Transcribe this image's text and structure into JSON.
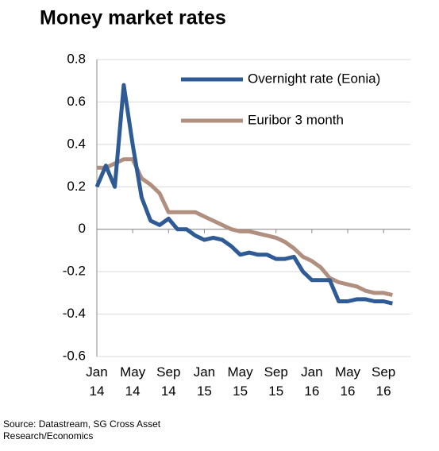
{
  "chart_data": {
    "type": "line",
    "title": "Money market rates",
    "source": "Source: Datastream, SG Cross Asset Research/Economics",
    "x": [
      "2014-01",
      "2014-02",
      "2014-03",
      "2014-04",
      "2014-05",
      "2014-06",
      "2014-07",
      "2014-08",
      "2014-09",
      "2014-10",
      "2014-11",
      "2014-12",
      "2015-01",
      "2015-02",
      "2015-03",
      "2015-04",
      "2015-05",
      "2015-06",
      "2015-07",
      "2015-08",
      "2015-09",
      "2015-10",
      "2015-11",
      "2015-12",
      "2016-01",
      "2016-02",
      "2016-03",
      "2016-04",
      "2016-05",
      "2016-06",
      "2016-07",
      "2016-08",
      "2016-09",
      "2016-10"
    ],
    "series": [
      {
        "name": "Overnight rate (Eonia)",
        "color": "#2e5a96",
        "values": [
          0.2,
          0.3,
          0.2,
          0.68,
          0.4,
          0.15,
          0.04,
          0.02,
          0.05,
          0.0,
          0.0,
          -0.03,
          -0.05,
          -0.04,
          -0.05,
          -0.08,
          -0.12,
          -0.11,
          -0.12,
          -0.12,
          -0.14,
          -0.14,
          -0.13,
          -0.2,
          -0.24,
          -0.24,
          -0.24,
          -0.34,
          -0.34,
          -0.33,
          -0.33,
          -0.34,
          -0.34,
          -0.35
        ]
      },
      {
        "name": "Euribor 3 month",
        "color": "#b08f7f",
        "values": [
          0.29,
          0.29,
          0.31,
          0.33,
          0.33,
          0.24,
          0.21,
          0.17,
          0.08,
          0.08,
          0.08,
          0.08,
          0.06,
          0.04,
          0.02,
          0.0,
          -0.01,
          -0.01,
          -0.02,
          -0.03,
          -0.04,
          -0.06,
          -0.09,
          -0.13,
          -0.15,
          -0.18,
          -0.23,
          -0.25,
          -0.26,
          -0.27,
          -0.29,
          -0.3,
          -0.3,
          -0.31
        ]
      }
    ],
    "xlim": [
      "2014-01",
      "2016-12"
    ],
    "xticks": [
      {
        "value": "2014-01",
        "label": "Jan 14"
      },
      {
        "value": "2014-05",
        "label": "May 14"
      },
      {
        "value": "2014-09",
        "label": "Sep 14"
      },
      {
        "value": "2015-01",
        "label": "Jan 15"
      },
      {
        "value": "2015-05",
        "label": "May 15"
      },
      {
        "value": "2015-09",
        "label": "Sep 15"
      },
      {
        "value": "2016-01",
        "label": "Jan 16"
      },
      {
        "value": "2016-05",
        "label": "May 16"
      },
      {
        "value": "2016-09",
        "label": "Sep 16"
      }
    ],
    "ylim": [
      -0.6,
      0.8
    ],
    "yticks": [
      {
        "value": -0.6,
        "label": "-0.6"
      },
      {
        "value": -0.4,
        "label": "-0.4"
      },
      {
        "value": -0.2,
        "label": "-0.2"
      },
      0,
      {
        "value": 0.2,
        "label": "0.2"
      },
      {
        "value": 0.4,
        "label": "0.4"
      },
      {
        "value": 0.6,
        "label": "0.6"
      },
      {
        "value": 0.8,
        "label": "0.8"
      }
    ],
    "grid": true,
    "legend": "top-right"
  }
}
